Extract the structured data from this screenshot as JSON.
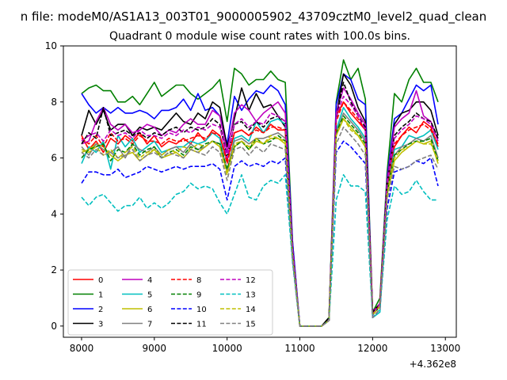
{
  "chart_data": {
    "type": "line",
    "suptitle": "n file: modeM0/AS1A13_003T01_9000005902_43709cztM0_level2_quad_clean",
    "title": "Quadrant 0 module wise count rates with 100.0s bins.",
    "x_offset_label": "+4.362e8",
    "xlim": [
      7750,
      13150
    ],
    "ylim": [
      -0.4,
      10
    ],
    "x_ticks": [
      8000,
      9000,
      10000,
      11000,
      12000,
      13000
    ],
    "y_ticks": [
      0,
      2,
      4,
      6,
      8,
      10
    ],
    "legend_position": "lower-left",
    "x": [
      8000,
      8100,
      8200,
      8300,
      8400,
      8500,
      8600,
      8700,
      8800,
      8900,
      9000,
      9100,
      9200,
      9300,
      9400,
      9500,
      9600,
      9700,
      9800,
      9900,
      10000,
      10100,
      10200,
      10300,
      10400,
      10500,
      10600,
      10700,
      10800,
      10900,
      11000,
      11100,
      11200,
      11300,
      11400,
      11500,
      11600,
      11700,
      11800,
      11900,
      12000,
      12100,
      12200,
      12300,
      12400,
      12500,
      12600,
      12700,
      12800,
      12900
    ],
    "series": [
      {
        "name": "0",
        "color": "#ff0000",
        "dash": "solid",
        "values": [
          6.8,
          6.3,
          6.6,
          6.2,
          6.7,
          6.5,
          6.8,
          6.6,
          6.9,
          6.5,
          6.8,
          6.4,
          6.6,
          6.5,
          6.7,
          6.5,
          6.9,
          6.6,
          7.0,
          6.8,
          5.9,
          6.9,
          7.0,
          6.8,
          7.1,
          6.9,
          7.2,
          7.0,
          7.0,
          2.5,
          0.0,
          0.0,
          0.0,
          0.0,
          0.2,
          7.5,
          8.0,
          7.6,
          7.3,
          7.0,
          0.4,
          0.8,
          5.0,
          6.4,
          6.8,
          7.1,
          6.9,
          7.3,
          7.1,
          6.4
        ]
      },
      {
        "name": "1",
        "color": "#008000",
        "dash": "solid",
        "values": [
          8.3,
          8.5,
          8.6,
          8.4,
          8.4,
          8.0,
          8.0,
          8.2,
          7.9,
          8.3,
          8.7,
          8.2,
          8.4,
          8.6,
          8.6,
          8.3,
          8.1,
          8.3,
          8.5,
          8.8,
          7.3,
          9.2,
          9.0,
          8.6,
          8.8,
          8.8,
          9.1,
          8.8,
          8.7,
          3.0,
          0.0,
          0.0,
          0.0,
          0.0,
          0.3,
          8.0,
          9.5,
          8.8,
          9.2,
          8.1,
          0.5,
          1.0,
          5.5,
          8.3,
          8.0,
          8.8,
          9.2,
          8.7,
          8.7,
          8.0
        ]
      },
      {
        "name": "2",
        "color": "#0000ff",
        "dash": "solid",
        "values": [
          8.3,
          7.9,
          7.6,
          7.8,
          7.6,
          7.8,
          7.6,
          7.6,
          7.7,
          7.6,
          7.4,
          7.7,
          7.7,
          7.8,
          8.1,
          7.7,
          8.3,
          7.7,
          7.8,
          7.5,
          6.5,
          8.2,
          7.7,
          8.1,
          8.4,
          8.3,
          8.6,
          8.4,
          7.9,
          3.0,
          0.0,
          0.0,
          0.0,
          0.0,
          0.2,
          7.9,
          9.0,
          8.8,
          8.1,
          7.9,
          0.4,
          0.8,
          5.3,
          7.4,
          7.6,
          8.1,
          8.6,
          8.4,
          8.6,
          7.2
        ]
      },
      {
        "name": "3",
        "color": "#000000",
        "dash": "solid",
        "values": [
          6.8,
          7.7,
          7.2,
          7.7,
          7.0,
          7.2,
          7.2,
          6.8,
          7.1,
          7.0,
          7.1,
          7.0,
          7.3,
          7.6,
          7.3,
          7.2,
          7.6,
          7.4,
          8.0,
          7.8,
          6.4,
          7.4,
          8.5,
          7.7,
          8.3,
          7.8,
          7.9,
          7.5,
          7.1,
          2.5,
          0.0,
          0.0,
          0.0,
          0.0,
          0.3,
          7.5,
          9.0,
          8.6,
          7.8,
          7.3,
          0.5,
          0.8,
          5.1,
          7.2,
          7.6,
          7.7,
          8.0,
          8.0,
          7.7,
          6.8
        ]
      },
      {
        "name": "4",
        "color": "#bf00bf",
        "dash": "solid",
        "values": [
          6.5,
          6.6,
          7.3,
          7.8,
          7.2,
          7.0,
          7.2,
          6.9,
          7.0,
          7.2,
          7.1,
          6.8,
          7.0,
          6.9,
          7.2,
          7.4,
          7.2,
          7.2,
          7.7,
          7.5,
          6.2,
          7.6,
          7.9,
          7.7,
          7.3,
          7.6,
          7.8,
          8.0,
          7.6,
          2.8,
          0.0,
          0.0,
          0.0,
          0.0,
          0.2,
          7.6,
          8.5,
          8.1,
          7.6,
          7.2,
          0.5,
          0.8,
          5.2,
          7.1,
          7.4,
          7.6,
          8.4,
          7.5,
          7.3,
          6.6
        ]
      },
      {
        "name": "5",
        "color": "#00bfbf",
        "dash": "solid",
        "values": [
          5.8,
          6.4,
          6.2,
          6.6,
          5.6,
          6.8,
          6.4,
          6.7,
          6.2,
          6.4,
          6.6,
          6.2,
          6.3,
          6.4,
          6.4,
          6.6,
          6.5,
          6.6,
          6.9,
          6.7,
          5.5,
          6.7,
          6.8,
          6.6,
          7.3,
          6.9,
          7.3,
          7.4,
          7.2,
          2.5,
          0.0,
          0.0,
          0.0,
          0.0,
          0.2,
          7.0,
          7.8,
          7.4,
          7.1,
          6.7,
          0.3,
          0.5,
          4.9,
          6.3,
          6.4,
          6.8,
          6.7,
          6.8,
          7.0,
          6.3
        ]
      },
      {
        "name": "6",
        "color": "#bfbf00",
        "dash": "solid",
        "values": [
          6.2,
          6.3,
          6.5,
          6.4,
          6.1,
          5.9,
          6.1,
          6.2,
          5.9,
          6.1,
          6.3,
          6.0,
          6.1,
          6.2,
          6.0,
          6.3,
          6.2,
          6.4,
          6.6,
          6.4,
          5.5,
          6.4,
          6.6,
          6.3,
          6.6,
          6.5,
          6.7,
          6.7,
          6.5,
          2.4,
          0.0,
          0.0,
          0.0,
          0.0,
          0.2,
          6.8,
          7.4,
          7.1,
          6.8,
          6.4,
          0.4,
          0.7,
          4.7,
          5.9,
          6.2,
          6.4,
          6.6,
          6.5,
          6.6,
          5.8
        ]
      },
      {
        "name": "7",
        "color": "#808080",
        "dash": "solid",
        "values": [
          6.4,
          6.1,
          6.5,
          6.3,
          6.2,
          6.4,
          6.0,
          6.5,
          6.3,
          6.2,
          6.4,
          6.1,
          6.3,
          6.4,
          6.2,
          6.5,
          6.3,
          6.4,
          6.6,
          6.5,
          5.6,
          6.6,
          6.7,
          6.5,
          6.7,
          6.7,
          6.8,
          6.9,
          6.7,
          2.5,
          0.0,
          0.0,
          0.0,
          0.0,
          0.2,
          6.9,
          7.6,
          7.3,
          7.0,
          6.6,
          0.4,
          0.7,
          4.9,
          6.1,
          6.4,
          6.5,
          6.7,
          6.6,
          6.8,
          6.0
        ]
      },
      {
        "name": "8",
        "color": "#ff0000",
        "dash": "dashed",
        "values": [
          6.7,
          6.5,
          6.8,
          6.4,
          6.9,
          6.6,
          6.7,
          6.5,
          6.8,
          6.6,
          6.6,
          6.5,
          6.7,
          6.6,
          6.6,
          6.7,
          6.8,
          6.7,
          6.9,
          6.8,
          5.8,
          6.9,
          7.0,
          6.8,
          7.0,
          6.9,
          7.1,
          7.1,
          7.0,
          2.6,
          0.0,
          0.0,
          0.0,
          0.0,
          0.2,
          7.3,
          8.0,
          7.7,
          7.4,
          7.0,
          0.4,
          0.8,
          5.0,
          6.5,
          6.8,
          7.0,
          7.1,
          7.2,
          7.0,
          6.5
        ]
      },
      {
        "name": "9",
        "color": "#008000",
        "dash": "dashed",
        "values": [
          6.0,
          6.3,
          6.4,
          6.5,
          5.9,
          6.3,
          6.2,
          6.5,
          6.1,
          6.3,
          6.4,
          6.0,
          6.2,
          6.3,
          6.1,
          6.4,
          6.3,
          6.5,
          6.6,
          6.5,
          5.6,
          6.4,
          6.6,
          6.3,
          6.7,
          6.5,
          6.6,
          6.8,
          6.6,
          2.5,
          0.0,
          0.0,
          0.0,
          0.0,
          0.2,
          6.9,
          7.5,
          7.2,
          6.9,
          6.5,
          0.4,
          0.7,
          4.8,
          6.1,
          6.3,
          6.5,
          6.6,
          6.6,
          6.7,
          5.9
        ]
      },
      {
        "name": "10",
        "color": "#0000ff",
        "dash": "dashed",
        "values": [
          5.1,
          5.5,
          5.5,
          5.4,
          5.4,
          5.6,
          5.3,
          5.4,
          5.5,
          5.7,
          5.6,
          5.5,
          5.6,
          5.7,
          5.6,
          5.7,
          5.7,
          5.7,
          5.8,
          5.6,
          4.5,
          5.7,
          5.9,
          5.7,
          5.8,
          5.7,
          5.9,
          5.8,
          6.0,
          2.3,
          0.0,
          0.0,
          0.0,
          0.0,
          0.2,
          6.2,
          6.6,
          6.4,
          6.1,
          5.8,
          0.3,
          0.6,
          4.2,
          5.5,
          5.6,
          5.7,
          5.9,
          5.8,
          6.0,
          5.0
        ]
      },
      {
        "name": "11",
        "color": "#000000",
        "dash": "dashed",
        "values": [
          6.5,
          6.9,
          6.7,
          7.8,
          6.8,
          6.9,
          7.0,
          6.8,
          6.9,
          6.7,
          6.9,
          6.8,
          7.0,
          7.1,
          6.9,
          7.1,
          7.0,
          7.1,
          7.4,
          7.2,
          6.0,
          7.2,
          7.3,
          7.0,
          7.3,
          7.1,
          7.4,
          7.5,
          7.3,
          2.7,
          0.0,
          0.0,
          0.0,
          0.0,
          0.3,
          7.4,
          8.7,
          8.0,
          7.5,
          7.1,
          0.5,
          0.8,
          5.1,
          6.8,
          7.1,
          7.3,
          7.6,
          7.4,
          7.3,
          6.7
        ]
      },
      {
        "name": "12",
        "color": "#bf00bf",
        "dash": "dashed",
        "values": [
          6.6,
          6.8,
          6.9,
          6.6,
          7.0,
          6.8,
          6.9,
          6.7,
          7.0,
          6.8,
          6.8,
          6.7,
          6.9,
          6.8,
          7.0,
          6.9,
          7.1,
          7.0,
          7.2,
          7.1,
          6.0,
          7.2,
          7.4,
          7.1,
          7.3,
          7.2,
          7.6,
          7.5,
          7.3,
          2.7,
          0.0,
          0.0,
          0.0,
          0.0,
          0.2,
          7.5,
          8.2,
          7.9,
          7.5,
          7.0,
          0.4,
          0.8,
          5.1,
          6.7,
          7.0,
          7.2,
          7.5,
          7.4,
          7.2,
          6.6
        ]
      },
      {
        "name": "13",
        "color": "#00bfbf",
        "dash": "dashed",
        "values": [
          4.6,
          4.3,
          4.6,
          4.7,
          4.4,
          4.1,
          4.3,
          4.3,
          4.6,
          4.2,
          4.4,
          4.2,
          4.4,
          4.7,
          4.8,
          5.1,
          4.9,
          5.0,
          4.9,
          4.4,
          4.0,
          4.7,
          5.4,
          4.6,
          4.5,
          5.0,
          5.2,
          5.1,
          5.4,
          2.3,
          0.0,
          0.0,
          0.0,
          0.0,
          0.2,
          4.5,
          5.4,
          5.0,
          5.0,
          4.8,
          0.3,
          0.6,
          3.8,
          5.0,
          4.7,
          4.8,
          5.2,
          4.8,
          4.5,
          4.5
        ]
      },
      {
        "name": "14",
        "color": "#bfbf00",
        "dash": "dashed",
        "values": [
          6.3,
          6.2,
          6.4,
          6.1,
          6.3,
          6.0,
          6.2,
          6.4,
          6.0,
          6.2,
          6.3,
          6.1,
          6.3,
          6.2,
          6.4,
          6.3,
          6.5,
          6.4,
          6.6,
          6.4,
          5.4,
          6.5,
          6.6,
          6.4,
          6.7,
          6.5,
          6.8,
          6.7,
          6.6,
          2.5,
          0.0,
          0.0,
          0.0,
          0.0,
          0.2,
          6.8,
          7.4,
          7.0,
          6.8,
          6.4,
          0.4,
          0.7,
          4.7,
          6.0,
          6.3,
          6.4,
          6.6,
          6.5,
          6.5,
          5.9
        ]
      },
      {
        "name": "15",
        "color": "#808080",
        "dash": "dashed",
        "values": [
          6.2,
          6.0,
          6.3,
          6.1,
          6.2,
          6.0,
          6.1,
          6.3,
          5.9,
          6.1,
          6.2,
          6.0,
          6.2,
          6.1,
          6.0,
          6.3,
          6.2,
          6.1,
          6.4,
          6.2,
          5.2,
          6.3,
          6.4,
          6.1,
          6.4,
          6.2,
          6.5,
          6.4,
          6.3,
          2.4,
          0.0,
          0.0,
          0.0,
          0.0,
          0.2,
          6.5,
          7.1,
          6.8,
          6.5,
          6.1,
          0.3,
          0.6,
          4.5,
          5.7,
          5.6,
          5.7,
          5.9,
          6.0,
          6.1,
          5.6
        ]
      }
    ]
  }
}
